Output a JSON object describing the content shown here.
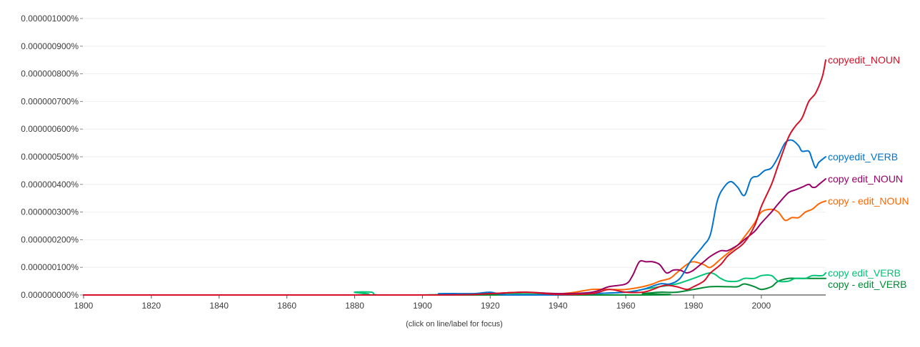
{
  "chart_data": {
    "type": "line",
    "y_unit": "percent",
    "xlim": [
      1800,
      2019
    ],
    "ylim": [
      0,
      1e-08
    ],
    "x_ticks": [
      1800,
      1820,
      1840,
      1860,
      1880,
      1900,
      1920,
      1940,
      1960,
      1980,
      2000
    ],
    "x_tick_labels": [
      "1800",
      "1820",
      "1840",
      "1860",
      "1880",
      "1900",
      "1920",
      "1940",
      "1960",
      "1980",
      "2000"
    ],
    "y_ticks": [
      0,
      1e-09,
      2e-09,
      3e-09,
      4e-09,
      5e-09,
      6e-09,
      7e-09,
      8e-09,
      9e-09,
      1e-08
    ],
    "y_tick_labels": [
      "0.000000000%",
      "0.000000100%",
      "0.000000200%",
      "0.000000300%",
      "0.000000400%",
      "0.000000500%",
      "0.000000600%",
      "0.000000700%",
      "0.000000800%",
      "0.000000900%",
      "0.000001000%"
    ],
    "grid": true,
    "legend": "inline-right",
    "series": [
      {
        "name": "copyedit_NOUN",
        "color": "#d50f25",
        "x": [
          1800,
          1900,
          1920,
          1930,
          1940,
          1950,
          1955,
          1960,
          1965,
          1968,
          1970,
          1972,
          1975,
          1978,
          1980,
          1983,
          1985,
          1988,
          1990,
          1992,
          1995,
          1998,
          2000,
          2003,
          2005,
          2008,
          2010,
          2012,
          2014,
          2016,
          2018,
          2019
        ],
        "y": [
          0,
          0,
          5e-11,
          1e-10,
          2e-11,
          5e-11,
          2e-10,
          1e-10,
          1e-10,
          2e-10,
          3e-10,
          3.5e-10,
          3e-10,
          2e-10,
          3e-10,
          5e-10,
          8e-10,
          1.1e-09,
          1.4e-09,
          1.6e-09,
          1.9e-09,
          2.5e-09,
          3.2e-09,
          4e-09,
          4.7e-09,
          5.7e-09,
          6.1e-09,
          6.4e-09,
          7e-09,
          7.3e-09,
          7.9e-09,
          8.5e-09
        ]
      },
      {
        "name": "copyedit_VERB",
        "color": "#0073cf",
        "x": [
          1800,
          1900,
          1905,
          1915,
          1920,
          1925,
          1940,
          1950,
          1960,
          1965,
          1970,
          1973,
          1976,
          1979,
          1981,
          1983,
          1985,
          1987,
          1989,
          1991,
          1993,
          1995,
          1997,
          1999,
          2001,
          2003,
          2005,
          2007,
          2009,
          2011,
          2012,
          2014,
          2015,
          2016,
          2017,
          2019
        ],
        "y": [
          0,
          0,
          5e-11,
          5e-11,
          1e-10,
          0,
          0,
          5e-11,
          1e-10,
          2e-10,
          4e-10,
          4e-10,
          6e-10,
          1.2e-09,
          1.5e-09,
          1.8e-09,
          2.2e-09,
          3.4e-09,
          3.9e-09,
          4.1e-09,
          3.9e-09,
          3.6e-09,
          4.2e-09,
          4.3e-09,
          4.5e-09,
          4.6e-09,
          5e-09,
          5.5e-09,
          5.6e-09,
          5.4e-09,
          5.2e-09,
          5.2e-09,
          4.9e-09,
          4.6e-09,
          4.8e-09,
          5e-09
        ]
      },
      {
        "name": "copy edit_NOUN",
        "color": "#990066",
        "x": [
          1800,
          1900,
          1920,
          1930,
          1940,
          1950,
          1955,
          1960,
          1962,
          1964,
          1966,
          1968,
          1970,
          1972,
          1974,
          1976,
          1978,
          1980,
          1983,
          1985,
          1988,
          1990,
          1993,
          1995,
          1998,
          2000,
          2003,
          2005,
          2008,
          2010,
          2012,
          2014,
          2015,
          2016,
          2017,
          2018,
          2019
        ],
        "y": [
          0,
          0,
          5e-11,
          1e-10,
          5e-11,
          1e-10,
          3e-10,
          4e-10,
          7e-10,
          1.2e-09,
          1.2e-09,
          1.2e-09,
          1.1e-09,
          8e-10,
          9e-10,
          9e-10,
          8e-10,
          9e-10,
          1.2e-09,
          1.4e-09,
          1.6e-09,
          1.6e-09,
          1.8e-09,
          2e-09,
          2.3e-09,
          2.6e-09,
          3e-09,
          3.3e-09,
          3.7e-09,
          3.8e-09,
          3.9e-09,
          4e-09,
          3.9e-09,
          3.9e-09,
          4e-09,
          4.1e-09,
          4.2e-09
        ]
      },
      {
        "name": "copy - edit_NOUN",
        "color": "#ff6600",
        "x": [
          1800,
          1900,
          1920,
          1930,
          1940,
          1945,
          1950,
          1955,
          1960,
          1965,
          1968,
          1970,
          1973,
          1975,
          1978,
          1980,
          1983,
          1985,
          1988,
          1990,
          1993,
          1995,
          1998,
          2000,
          2003,
          2005,
          2007,
          2009,
          2011,
          2013,
          2015,
          2017,
          2019
        ],
        "y": [
          0,
          0,
          5e-11,
          1e-10,
          5e-11,
          1e-10,
          2e-10,
          2e-10,
          2e-10,
          3e-10,
          4e-10,
          5e-10,
          6e-10,
          8e-10,
          1.1e-09,
          1.2e-09,
          1.1e-09,
          1e-09,
          1.3e-09,
          1.5e-09,
          1.8e-09,
          2.1e-09,
          2.6e-09,
          3e-09,
          3.1e-09,
          3e-09,
          2.7e-09,
          2.8e-09,
          2.8e-09,
          3e-09,
          3.1e-09,
          3.3e-09,
          3.4e-09
        ]
      },
      {
        "name": "copy edit_VERB",
        "color": "#00c475",
        "x": [
          1800,
          1878,
          1880,
          1885,
          1887,
          1900,
          1920,
          1940,
          1950,
          1960,
          1965,
          1970,
          1975,
          1980,
          1985,
          1988,
          1990,
          1993,
          1995,
          1998,
          2000,
          2003,
          2005,
          2008,
          2010,
          2013,
          2015,
          2018,
          2019
        ],
        "y": [
          0,
          0,
          1e-10,
          1e-10,
          0,
          0,
          5e-11,
          2e-11,
          5e-11,
          1e-10,
          2e-10,
          3e-10,
          4e-10,
          6e-10,
          8e-10,
          6e-10,
          5e-10,
          5e-10,
          6e-10,
          6e-10,
          7e-10,
          7e-10,
          5e-10,
          5e-10,
          6e-10,
          6e-10,
          7e-10,
          7e-10,
          8e-10
        ]
      },
      {
        "name": "copy - edit_VERB",
        "color": "#008a33",
        "x": [
          1800,
          1960,
          1965,
          1970,
          1975,
          1980,
          1985,
          1990,
          1993,
          1995,
          1998,
          2000,
          2003,
          2005,
          2008,
          2010,
          2013,
          2015,
          2018,
          2019
        ],
        "y": [
          0,
          0,
          5e-11,
          1e-10,
          1e-10,
          2e-10,
          3e-10,
          3e-10,
          3e-10,
          4e-10,
          3e-10,
          2e-10,
          3e-10,
          5e-10,
          6e-10,
          6e-10,
          6e-10,
          6e-10,
          6e-10,
          6e-10
        ]
      }
    ],
    "annotation": "(click on line/label for focus)"
  }
}
